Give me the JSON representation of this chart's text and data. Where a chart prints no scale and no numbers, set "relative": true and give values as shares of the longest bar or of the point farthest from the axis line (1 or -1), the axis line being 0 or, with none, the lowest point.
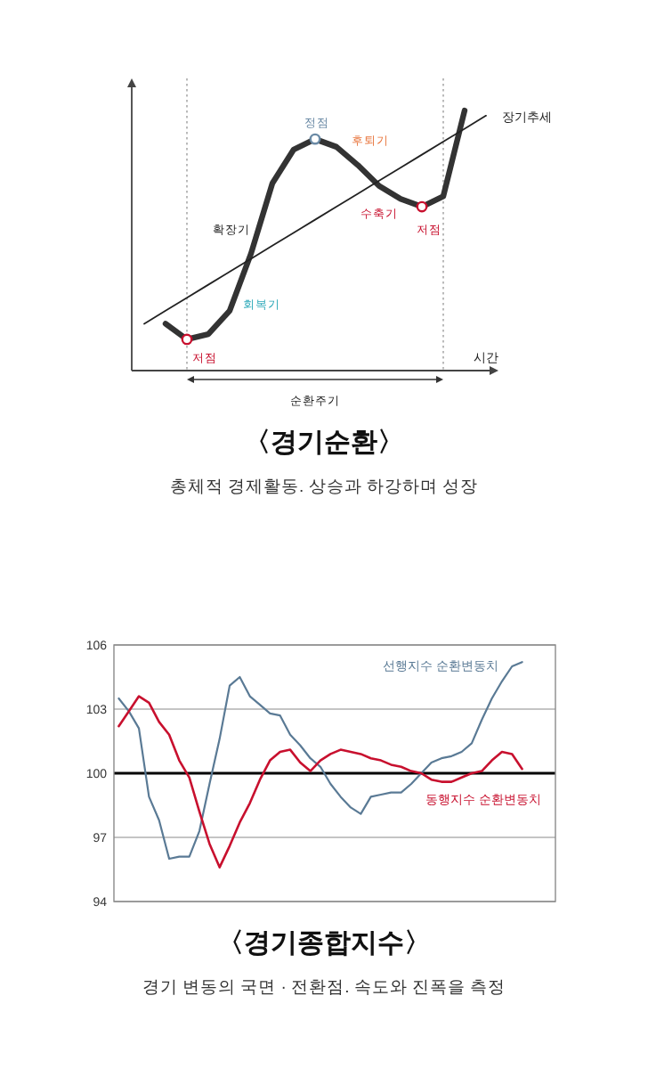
{
  "chart_data": [
    {
      "type": "line",
      "relative": true,
      "title": "〈경기순환〉",
      "subtitle": "총체적 경제활동. 상승과 하강하며 성장",
      "xlabel": "시간",
      "categories": [
        null,
        null,
        null,
        null,
        null,
        null,
        null,
        null,
        null,
        null,
        null,
        null,
        null,
        null,
        null,
        null,
        null
      ],
      "series": [
        {
          "color": "#333333",
          "values": [
            null,
            0.18,
            0.12,
            0.14,
            0.23,
            0.45,
            0.72,
            0.85,
            0.89,
            0.86,
            0.79,
            0.71,
            0.66,
            0.63,
            0.67,
            1,
            null
          ]
        },
        {
          "name": "장기추세",
          "color": "#222222",
          "values": [
            0.18,
            0.23,
            0.28,
            0.33,
            0.38,
            0.43,
            0.48,
            0.53,
            0.58,
            0.63,
            0.68,
            0.73,
            0.78,
            0.83,
            0.88,
            0.93,
            0.98
          ]
        }
      ],
      "annotations": [
        "정점",
        "후퇴기",
        "확장기",
        "수축기",
        "저점",
        "회복기",
        "저점",
        "순환주기"
      ]
    },
    {
      "type": "line",
      "title": "〈경기종합지수〉",
      "subtitle": "경기 변동의 국면 · 전환점. 속도와 진폭을 측정",
      "tick_labels": "y",
      "grid": "y",
      "categories": [
        null,
        null,
        null,
        null,
        null,
        null,
        null,
        null,
        null,
        null,
        null,
        null,
        null,
        null,
        null,
        null,
        null,
        null,
        null,
        null,
        null,
        null,
        null,
        null,
        null,
        null,
        null,
        null,
        null,
        null,
        null,
        null,
        null,
        null,
        null,
        null,
        null,
        null,
        null,
        null,
        null
      ],
      "ylim": [
        94,
        106
      ],
      "yticks": [
        94,
        97,
        100,
        103,
        106
      ],
      "series": [
        {
          "name": "선행지수 순환변동치",
          "color": "#5a7a95",
          "values": [
            103.5,
            102.9,
            102.1,
            98.9,
            97.8,
            96.0,
            96.1,
            96.1,
            97.3,
            99.5,
            101.6,
            104.1,
            104.5,
            103.6,
            103.2,
            102.8,
            102.7,
            101.8,
            101.3,
            100.7,
            100.3,
            99.5,
            98.9,
            98.4,
            98.1,
            98.9,
            99.0,
            99.1,
            99.1,
            99.5,
            100.0,
            100.5,
            100.7,
            100.8,
            101.0,
            101.4,
            102.5,
            103.5,
            104.3,
            105.0,
            105.2
          ]
        },
        {
          "name": "동행지수 순환변동치",
          "color": "#c8102e",
          "values": [
            102.2,
            102.9,
            103.6,
            103.3,
            102.4,
            101.8,
            100.6,
            99.8,
            98.2,
            96.7,
            95.6,
            96.6,
            97.7,
            98.6,
            99.7,
            100.6,
            101.0,
            101.1,
            100.5,
            100.1,
            100.6,
            100.9,
            101.1,
            101.0,
            100.9,
            100.7,
            100.6,
            100.4,
            100.3,
            100.1,
            100.0,
            99.7,
            99.6,
            99.6,
            99.8,
            100.0,
            100.1,
            100.6,
            101.0,
            100.9,
            100.2
          ]
        }
      ],
      "ref_lines": [
        {
          "axis": "y",
          "value": 100,
          "color": "#000000"
        }
      ]
    }
  ]
}
